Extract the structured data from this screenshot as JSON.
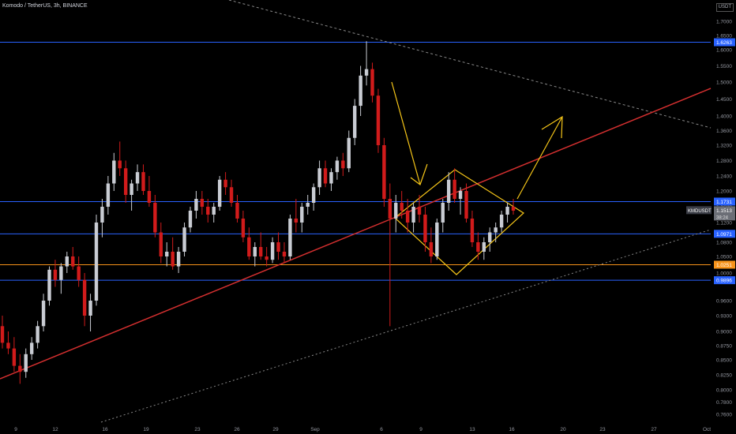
{
  "header": {
    "title": "Komodo / TetherUS, 3h, BINANCE",
    "currency": "USDT"
  },
  "colors": {
    "up": "#c9ccd3",
    "down": "#d11b1b",
    "axis_text": "#9598a1",
    "blue_line": "#2962ff",
    "orange_line": "#f7931a",
    "red_trend": "#d32f2f",
    "yellow": "#f5c518",
    "dotted": "#888888"
  },
  "chart_data": {
    "type": "candlestick",
    "symbol": "KMDUSDT",
    "interval": "3h",
    "ylim": [
      0.75,
      1.75
    ],
    "y_ticks": [
      "1.7000",
      "1.6500",
      "1.6000",
      "1.5500",
      "1.5000",
      "1.4500",
      "1.4000",
      "1.3600",
      "1.3200",
      "1.2800",
      "1.2400",
      "1.2000",
      "1.1600",
      "1.1200",
      "1.0800",
      "1.0500",
      "1.0000",
      "0.9600",
      "0.9300",
      "0.9000",
      "0.8750",
      "0.8500",
      "0.8250",
      "0.8000",
      "0.7800",
      "0.7600"
    ],
    "x_ticks": [
      "9",
      "12",
      "16",
      "19",
      "23",
      "26",
      "29",
      "Sep",
      "6",
      "9",
      "13",
      "16",
      "20",
      "23",
      "27",
      "Oct"
    ],
    "levels": [
      {
        "value": 1.6263,
        "label": "1.6263",
        "color": "#2962ff"
      },
      {
        "value": 1.1731,
        "label": "1.1731",
        "color": "#2962ff"
      },
      {
        "value": 1.0971,
        "label": "1.0971",
        "color": "#2962ff"
      },
      {
        "value": 1.0251,
        "label": "1.0251",
        "color": "#f7931a"
      },
      {
        "value": 0.9896,
        "label": "0.9896",
        "color": "#2962ff"
      }
    ],
    "last_price": {
      "symbol": "KMDUSDT",
      "price": "1.1513",
      "countdown": "38:24"
    },
    "candles": [
      [
        0.91,
        0.93,
        0.87,
        0.88
      ],
      [
        0.88,
        0.9,
        0.86,
        0.87
      ],
      [
        0.87,
        0.89,
        0.83,
        0.84
      ],
      [
        0.84,
        0.86,
        0.81,
        0.83
      ],
      [
        0.83,
        0.87,
        0.82,
        0.86
      ],
      [
        0.86,
        0.89,
        0.85,
        0.88
      ],
      [
        0.88,
        0.92,
        0.87,
        0.91
      ],
      [
        0.91,
        0.97,
        0.9,
        0.96
      ],
      [
        0.96,
        1.02,
        0.95,
        1.01
      ],
      [
        1.01,
        1.04,
        0.98,
        0.99
      ],
      [
        0.99,
        1.03,
        0.97,
        1.02
      ],
      [
        1.02,
        1.06,
        1.0,
        1.05
      ],
      [
        1.05,
        1.07,
        1.01,
        1.02
      ],
      [
        1.02,
        1.05,
        0.98,
        0.99
      ],
      [
        0.99,
        1.0,
        0.91,
        0.93
      ],
      [
        0.93,
        0.97,
        0.9,
        0.96
      ],
      [
        0.96,
        1.14,
        0.95,
        1.12
      ],
      [
        1.12,
        1.18,
        1.09,
        1.16
      ],
      [
        1.16,
        1.24,
        1.14,
        1.22
      ],
      [
        1.22,
        1.3,
        1.2,
        1.28
      ],
      [
        1.28,
        1.33,
        1.24,
        1.26
      ],
      [
        1.26,
        1.28,
        1.17,
        1.19
      ],
      [
        1.19,
        1.23,
        1.15,
        1.22
      ],
      [
        1.22,
        1.27,
        1.2,
        1.25
      ],
      [
        1.25,
        1.27,
        1.19,
        1.2
      ],
      [
        1.2,
        1.24,
        1.16,
        1.17
      ],
      [
        1.17,
        1.19,
        1.09,
        1.1
      ],
      [
        1.1,
        1.12,
        1.03,
        1.05
      ],
      [
        1.05,
        1.08,
        1.02,
        1.06
      ],
      [
        1.06,
        1.09,
        1.01,
        1.02
      ],
      [
        1.02,
        1.07,
        1.0,
        1.06
      ],
      [
        1.06,
        1.12,
        1.05,
        1.11
      ],
      [
        1.11,
        1.16,
        1.1,
        1.15
      ],
      [
        1.15,
        1.2,
        1.13,
        1.18
      ],
      [
        1.18,
        1.2,
        1.14,
        1.16
      ],
      [
        1.16,
        1.18,
        1.12,
        1.14
      ],
      [
        1.14,
        1.17,
        1.12,
        1.16
      ],
      [
        1.16,
        1.24,
        1.15,
        1.23
      ],
      [
        1.23,
        1.25,
        1.19,
        1.21
      ],
      [
        1.21,
        1.23,
        1.16,
        1.17
      ],
      [
        1.17,
        1.19,
        1.12,
        1.13
      ],
      [
        1.13,
        1.15,
        1.08,
        1.09
      ],
      [
        1.09,
        1.11,
        1.04,
        1.05
      ],
      [
        1.05,
        1.08,
        1.02,
        1.07
      ],
      [
        1.07,
        1.1,
        1.04,
        1.05
      ],
      [
        1.05,
        1.07,
        1.02,
        1.04
      ],
      [
        1.04,
        1.09,
        1.03,
        1.08
      ],
      [
        1.08,
        1.1,
        1.04,
        1.06
      ],
      [
        1.06,
        1.08,
        1.03,
        1.05
      ],
      [
        1.05,
        1.14,
        1.04,
        1.13
      ],
      [
        1.13,
        1.18,
        1.1,
        1.12
      ],
      [
        1.12,
        1.17,
        1.1,
        1.16
      ],
      [
        1.16,
        1.19,
        1.14,
        1.17
      ],
      [
        1.17,
        1.22,
        1.15,
        1.21
      ],
      [
        1.21,
        1.28,
        1.19,
        1.26
      ],
      [
        1.26,
        1.28,
        1.21,
        1.22
      ],
      [
        1.22,
        1.26,
        1.2,
        1.25
      ],
      [
        1.25,
        1.29,
        1.23,
        1.28
      ],
      [
        1.28,
        1.3,
        1.24,
        1.26
      ],
      [
        1.26,
        1.36,
        1.25,
        1.34
      ],
      [
        1.34,
        1.45,
        1.32,
        1.43
      ],
      [
        1.43,
        1.55,
        1.4,
        1.52
      ],
      [
        1.52,
        1.63,
        1.49,
        1.54
      ],
      [
        1.54,
        1.56,
        1.44,
        1.46
      ],
      [
        1.46,
        1.48,
        1.3,
        1.32
      ],
      [
        1.32,
        1.34,
        1.16,
        1.18
      ],
      [
        1.18,
        1.22,
        0.91,
        1.13
      ],
      [
        1.13,
        1.19,
        1.1,
        1.17
      ],
      [
        1.17,
        1.2,
        1.13,
        1.15
      ],
      [
        1.15,
        1.18,
        1.1,
        1.12
      ],
      [
        1.12,
        1.17,
        1.1,
        1.16
      ],
      [
        1.16,
        1.19,
        1.12,
        1.14
      ],
      [
        1.14,
        1.16,
        1.06,
        1.08
      ],
      [
        1.08,
        1.11,
        1.03,
        1.05
      ],
      [
        1.05,
        1.13,
        1.04,
        1.12
      ],
      [
        1.12,
        1.18,
        1.1,
        1.17
      ],
      [
        1.17,
        1.25,
        1.15,
        1.23
      ],
      [
        1.23,
        1.26,
        1.17,
        1.18
      ],
      [
        1.18,
        1.21,
        1.14,
        1.2
      ],
      [
        1.2,
        1.22,
        1.12,
        1.13
      ],
      [
        1.13,
        1.15,
        1.07,
        1.08
      ],
      [
        1.08,
        1.1,
        1.04,
        1.06
      ],
      [
        1.06,
        1.09,
        1.04,
        1.08
      ],
      [
        1.08,
        1.11,
        1.06,
        1.1
      ],
      [
        1.1,
        1.12,
        1.08,
        1.11
      ],
      [
        1.11,
        1.15,
        1.1,
        1.14
      ],
      [
        1.14,
        1.17,
        1.12,
        1.16
      ],
      [
        1.16,
        1.18,
        1.14,
        1.15
      ]
    ]
  }
}
